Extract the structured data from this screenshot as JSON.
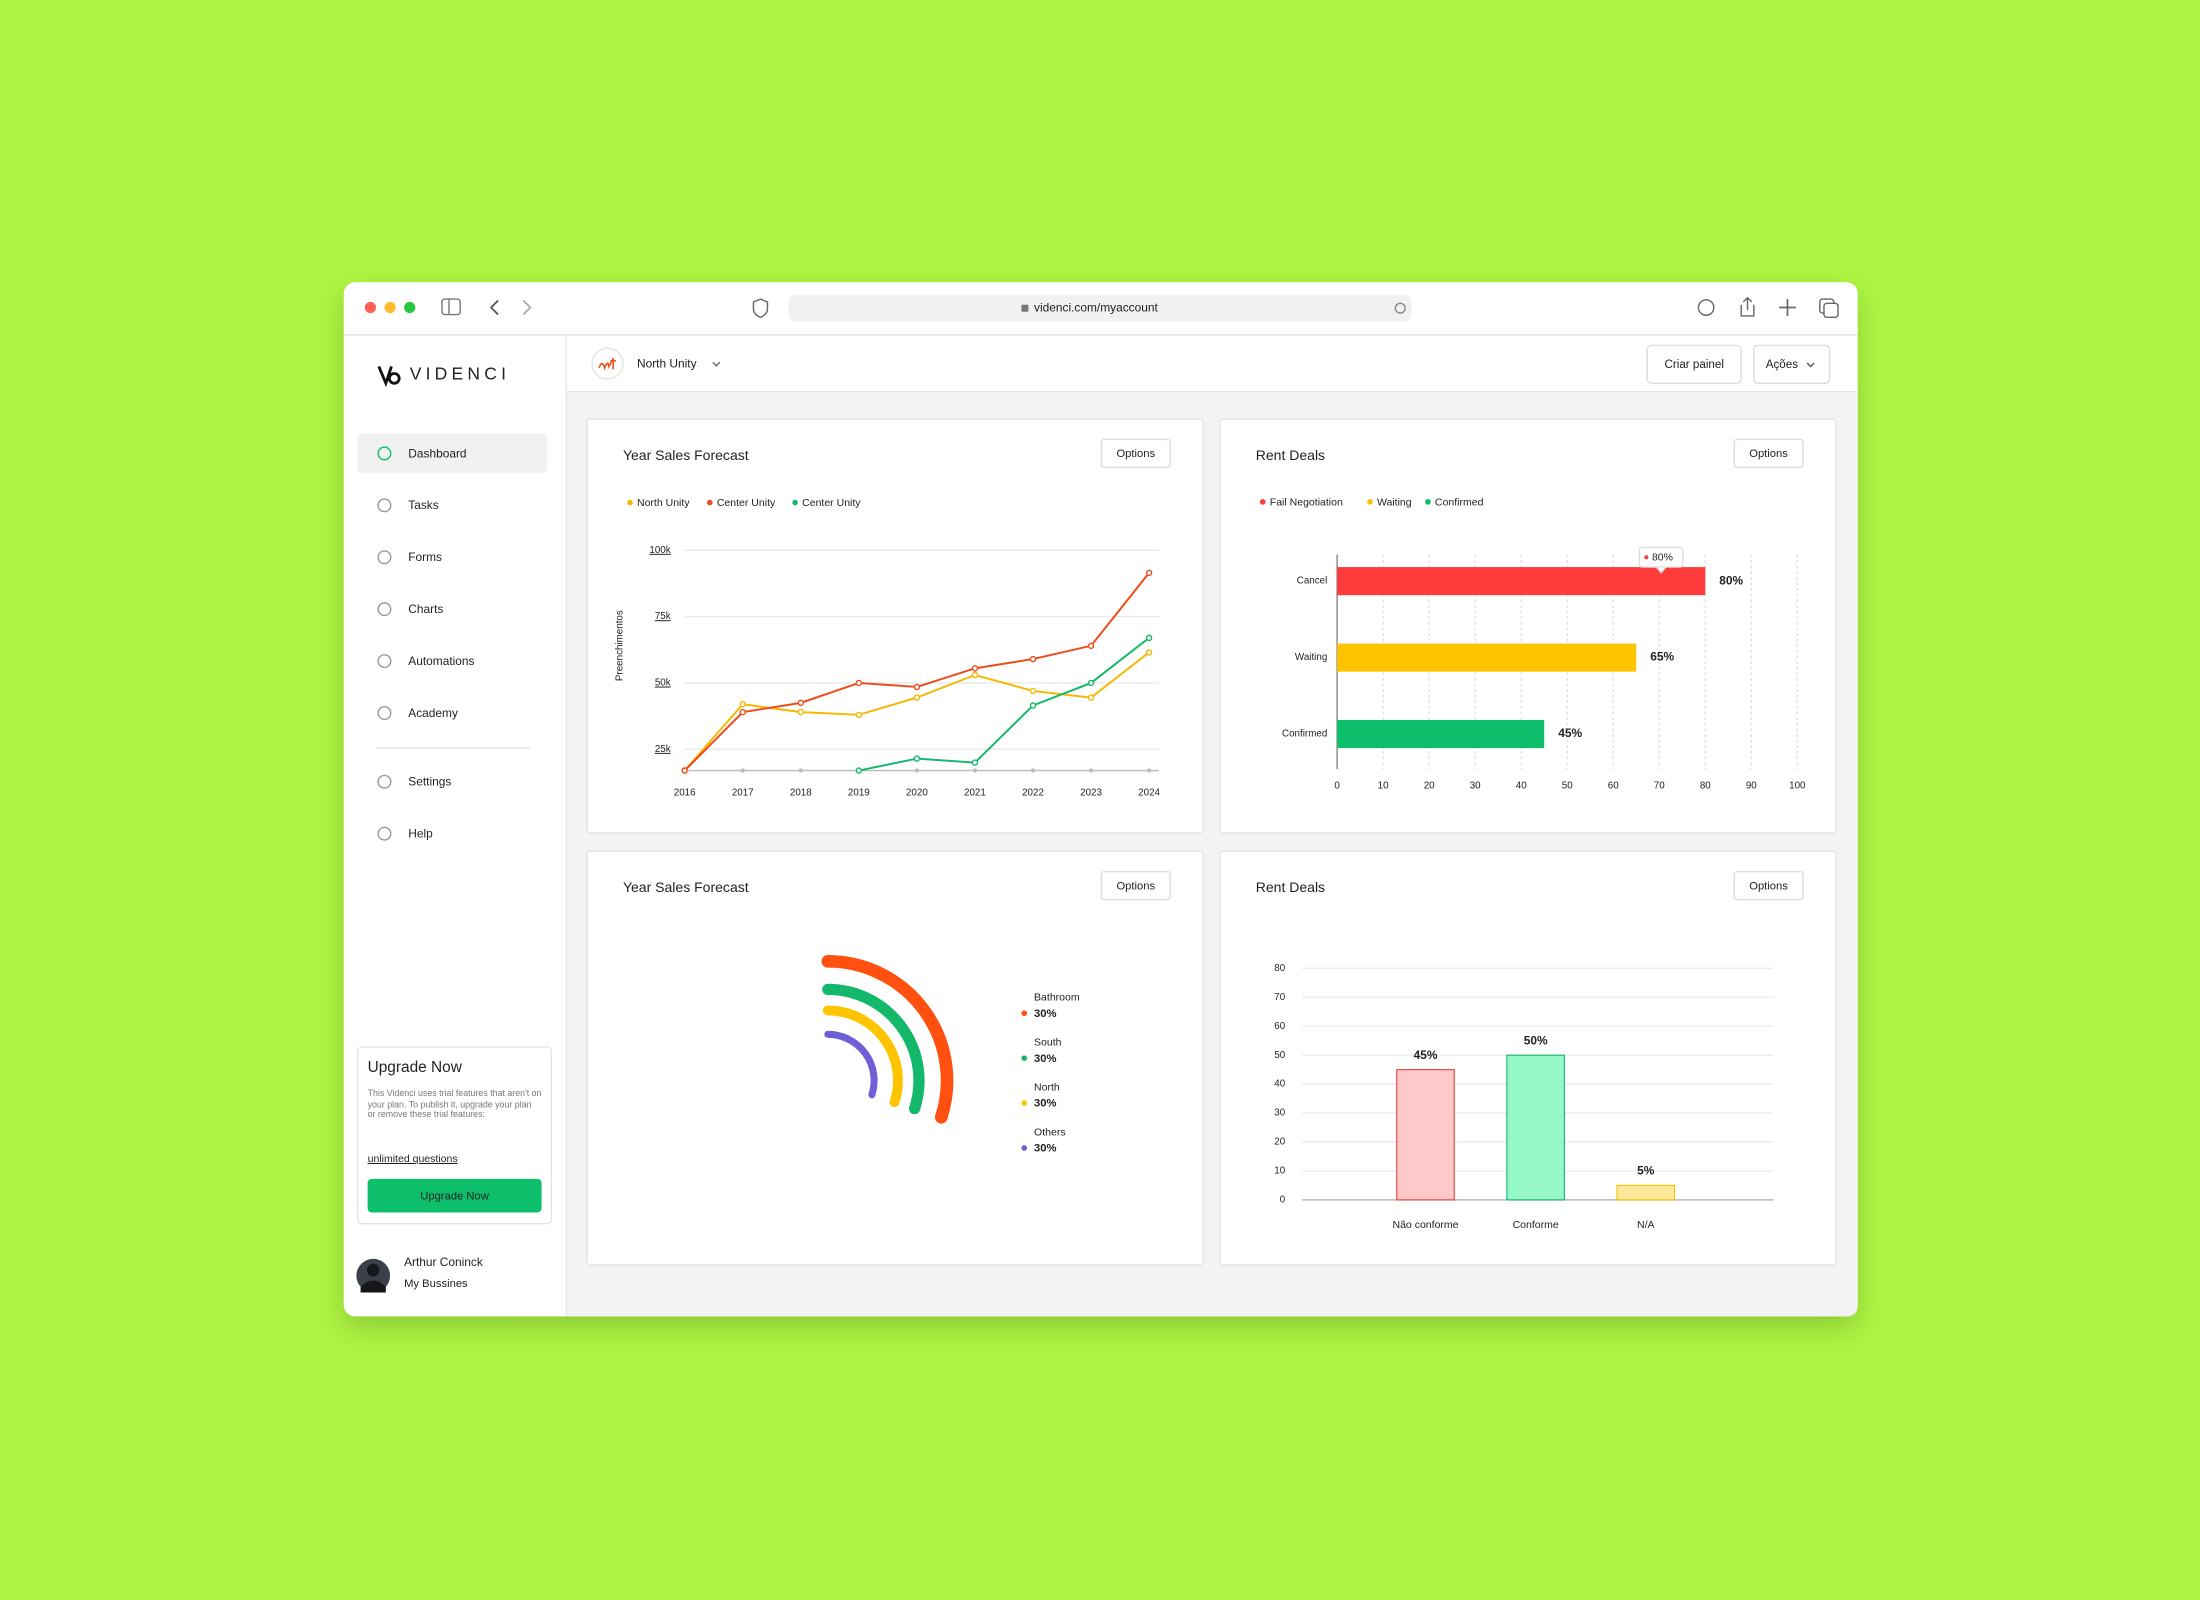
{
  "browser": {
    "url": "videnci.com/myaccount"
  },
  "sidebar": {
    "logo": "VIDENCI",
    "nav": [
      "Dashboard",
      "Tasks",
      "Forms",
      "Charts",
      "Automations",
      "Academy"
    ],
    "nav_bottom": [
      "Settings",
      "Help"
    ],
    "upgrade": {
      "title": "Upgrade Now",
      "text": "This Videnci uses trial features that aren't on your plan. To publish it, upgrade your plan or remove these trial features:",
      "link": "unlimited questions",
      "button": "Upgrade Now"
    },
    "user": {
      "name": "Arthur Coninck",
      "subtitle": "My Bussines"
    }
  },
  "header": {
    "unit": "North Unity",
    "buttons": [
      "Criar painel",
      "Ações"
    ]
  },
  "panels": [
    {
      "title": "Year Sales Forecast",
      "button": "Options",
      "chart": {
        "type": "line",
        "y_label": "Preenchimentos",
        "categories": [
          "2016",
          "2017",
          "2018",
          "2019",
          "2020",
          "2021",
          "2022",
          "2023",
          "2024"
        ],
        "series": [
          {
            "name": "North Unity",
            "color": "#f5b800",
            "values": [
              17,
              42,
              39,
              38,
              44.5,
              53,
              47,
              44.5,
              61.5
            ]
          },
          {
            "name": "Center Unity",
            "color": "#f04a1a",
            "values": [
              17,
              39,
              42.5,
              50,
              48.5,
              55.5,
              59,
              64,
              91.5
            ]
          },
          {
            "name": "Center Unity",
            "color": "#13b86b",
            "values": [
              null,
              null,
              null,
              17,
              21.5,
              20,
              41.5,
              50,
              67
            ]
          }
        ],
        "ylim": [
          17,
          100
        ],
        "yticks": [
          {
            "value": 25,
            "label": "25k"
          },
          {
            "value": 50,
            "label": "50k"
          },
          {
            "value": 75,
            "label": "75k"
          },
          {
            "value": 100,
            "label": "100k"
          }
        ],
        "grid": true
      }
    },
    {
      "title": "Rent Deals",
      "button": "Options",
      "chart": {
        "type": "hbar",
        "legend": [
          "Fail Negotiation",
          "Waiting",
          "Confirmed"
        ],
        "categories": [
          "Cancel",
          "Waiting",
          "Confirmed"
        ],
        "values": [
          80,
          65,
          45
        ],
        "value_labels": [
          "80%",
          "65%",
          "45%"
        ],
        "colors": [
          "#ff3b3b",
          "#ffc400",
          "#0dbf6a"
        ],
        "tooltip": "80%",
        "xlim": [
          0,
          100
        ],
        "xticks": [
          0,
          10,
          20,
          30,
          40,
          50,
          60,
          70,
          80,
          90,
          100
        ],
        "grid": true
      }
    },
    {
      "title": "Year Sales Forecast",
      "button": "Options",
      "chart": {
        "type": "radial",
        "categories": [
          "Bathroom",
          "South",
          "North",
          "Others"
        ],
        "values": [
          30,
          30,
          30,
          30
        ],
        "value_labels": [
          "30%",
          "30%",
          "30%",
          "30%"
        ],
        "colors": [
          "#ff5010",
          "#13b86b",
          "#ffc400",
          "#7060d8"
        ]
      }
    },
    {
      "title": "Rent Deals",
      "button": "Options",
      "chart": {
        "type": "bar",
        "categories": [
          "Não conforme",
          "Conforme",
          "N/A"
        ],
        "values": [
          45,
          50,
          5
        ],
        "value_labels": [
          "45%",
          "50%",
          "5%"
        ],
        "colors": [
          "#ffc9c9",
          "#96f7c8",
          "#fde79a"
        ],
        "stroke_colors": [
          "#e84040",
          "#14b86b",
          "#f0c400"
        ],
        "ylim": [
          0,
          80
        ],
        "yticks": [
          0,
          10,
          20,
          30,
          40,
          50,
          60,
          70,
          80
        ],
        "grid": true
      }
    }
  ]
}
